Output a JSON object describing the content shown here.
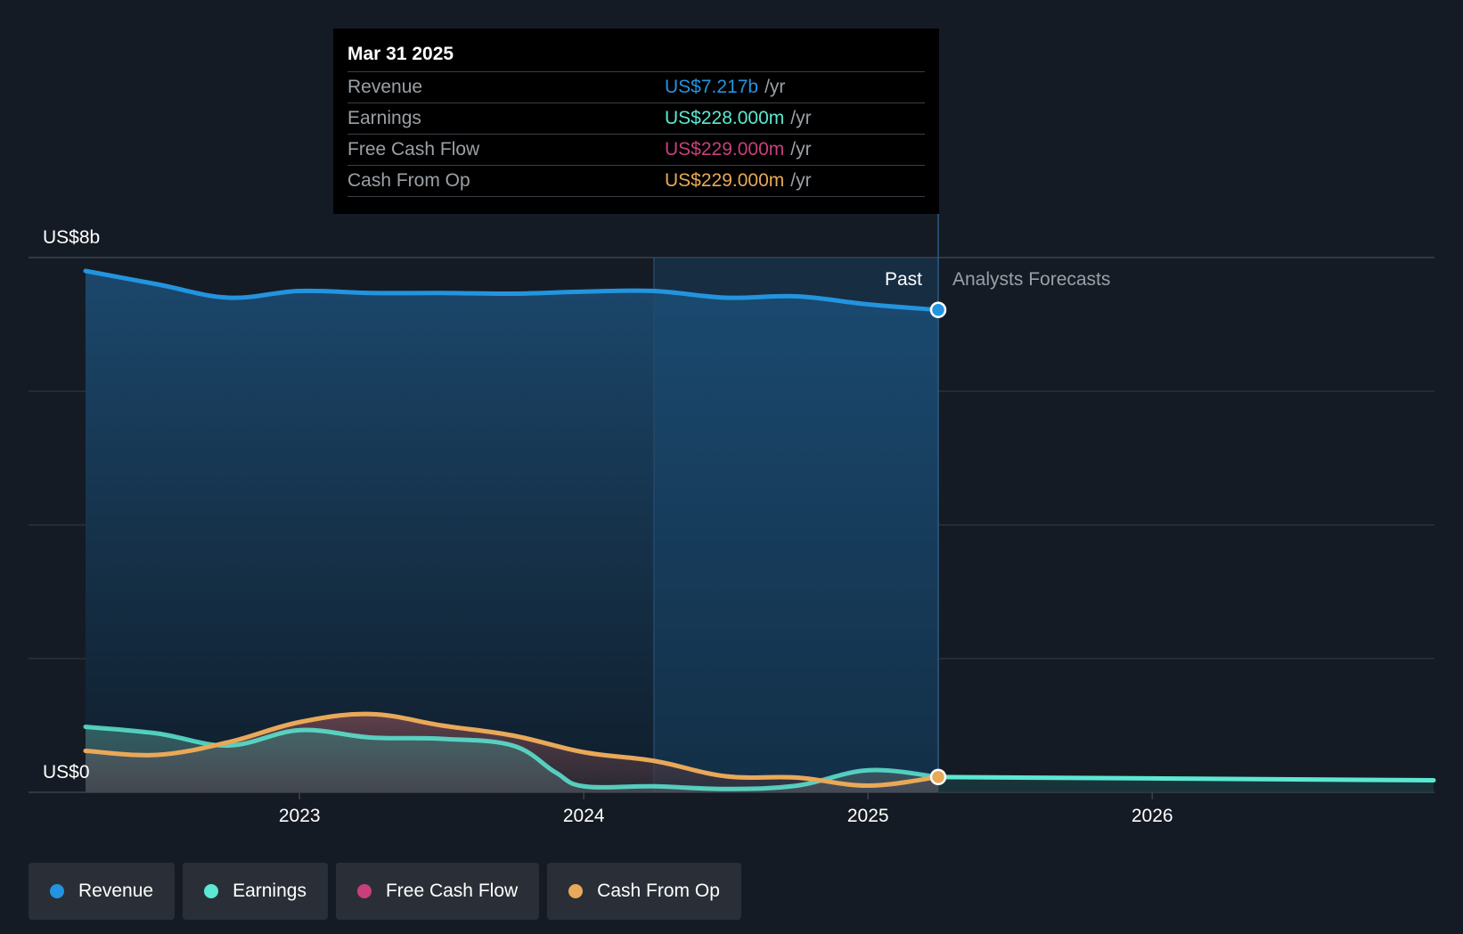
{
  "colors": {
    "revenue": "#2394df",
    "earnings": "#5ce8d2",
    "fcf": "#c7407c",
    "cfo": "#e8a958",
    "background": "#151b24"
  },
  "tooltip": {
    "date": "Mar 31 2025",
    "rows": [
      {
        "label": "Revenue",
        "value": "US$7.217b",
        "unit": "/yr"
      },
      {
        "label": "Earnings",
        "value": "US$228.000m",
        "unit": "/yr"
      },
      {
        "label": "Free Cash Flow",
        "value": "US$229.000m",
        "unit": "/yr"
      },
      {
        "label": "Cash From Op",
        "value": "US$229.000m",
        "unit": "/yr"
      }
    ]
  },
  "legend": [
    {
      "label": "Revenue",
      "icon": "revenue-dot"
    },
    {
      "label": "Earnings",
      "icon": "earnings-dot"
    },
    {
      "label": "Free Cash Flow",
      "icon": "fcf-dot"
    },
    {
      "label": "Cash From Op",
      "icon": "cfo-dot"
    }
  ],
  "chart_data": {
    "type": "area",
    "y_axis_labels": [
      "US$8b",
      "US$0"
    ],
    "ylim": [
      0,
      8
    ],
    "xlim": [
      2022.1,
      2026.99
    ],
    "x_ticks": [
      {
        "value": 2023,
        "label": "2023"
      },
      {
        "value": 2024,
        "label": "2024"
      },
      {
        "value": 2025,
        "label": "2025"
      },
      {
        "value": 2026,
        "label": "2026"
      }
    ],
    "grid": true,
    "past_label": "Past",
    "forecast_label": "Analysts Forecasts",
    "past_end": 2025.247,
    "highlight_start": 2024.247,
    "series": [
      {
        "name": "Revenue",
        "key": "revenue",
        "x": [
          2022.247,
          2022.5,
          2022.75,
          2023.0,
          2023.25,
          2023.5,
          2023.75,
          2024.0,
          2024.247,
          2024.5,
          2024.75,
          2025.0,
          2025.247
        ],
        "y": [
          7.8,
          7.6,
          7.4,
          7.5,
          7.47,
          7.47,
          7.46,
          7.49,
          7.5,
          7.4,
          7.42,
          7.3,
          7.217
        ]
      },
      {
        "name": "Earnings",
        "key": "earnings",
        "x": [
          2022.247,
          2022.5,
          2022.75,
          2023.0,
          2023.25,
          2023.5,
          2023.75,
          2023.9,
          2024.0,
          2024.247,
          2024.5,
          2024.75,
          2025.0,
          2025.247
        ],
        "y": [
          0.98,
          0.88,
          0.7,
          0.93,
          0.82,
          0.8,
          0.7,
          0.3,
          0.09,
          0.09,
          0.05,
          0.1,
          0.33,
          0.228
        ],
        "forecast_x": [
          2025.247,
          2026.99
        ],
        "forecast_y": [
          0.228,
          0.18
        ]
      },
      {
        "name": "Free Cash Flow",
        "key": "fcf",
        "x": [
          2022.247,
          2022.5,
          2022.75,
          2023.0,
          2023.25,
          2023.5,
          2023.75,
          2024.0,
          2024.247,
          2024.5,
          2024.75,
          2025.0,
          2025.247
        ],
        "y": [
          0.62,
          0.56,
          0.75,
          1.05,
          1.17,
          1.0,
          0.85,
          0.6,
          0.47,
          0.24,
          0.22,
          0.1,
          0.229
        ]
      },
      {
        "name": "Cash From Op",
        "key": "cfo",
        "x": [
          2022.247,
          2022.5,
          2022.75,
          2023.0,
          2023.25,
          2023.5,
          2023.75,
          2024.0,
          2024.247,
          2024.5,
          2024.75,
          2025.0,
          2025.247
        ],
        "y": [
          0.62,
          0.56,
          0.75,
          1.05,
          1.17,
          1.0,
          0.85,
          0.6,
          0.47,
          0.24,
          0.22,
          0.1,
          0.229
        ]
      }
    ]
  }
}
